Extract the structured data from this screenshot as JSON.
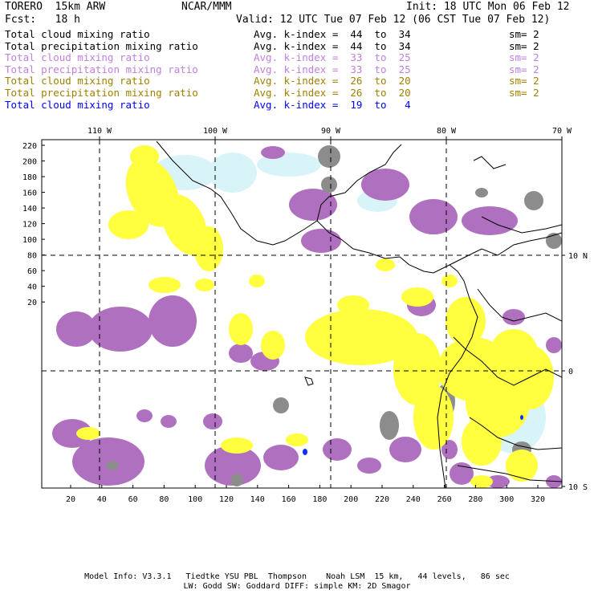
{
  "header": {
    "left_line1": "TORERO  15km ARW",
    "center_line1": "NCAR/MMM",
    "right_line1": "Init: 18 UTC Mon 06 Feb 12",
    "left_line2": "Fcst:   18 h",
    "right_line2": "Valid: 12 UTC Tue 07 Feb 12 (06 CST Tue 07 Feb 12)"
  },
  "legend_rows": [
    {
      "field": "Total cloud mixing ratio",
      "index": "Avg. k-index =  44  to  34",
      "sm": "sm= 2",
      "color": "#000000"
    },
    {
      "field": "Total precipitation mixing ratio",
      "index": "Avg. k-index =  44  to  34",
      "sm": "sm= 2",
      "color": "#000000"
    },
    {
      "field": "Total cloud mixing ratio",
      "index": "Avg. k-index =  33  to  25",
      "sm": "sm= 2",
      "color": "#c080e0"
    },
    {
      "field": "Total precipitation mixing ratio",
      "index": "Avg. k-index =  33  to  25",
      "sm": "sm= 2",
      "color": "#c080e0"
    },
    {
      "field": "Total cloud mixing ratio",
      "index": "Avg. k-index =  26  to  20",
      "sm": "sm= 2",
      "color": "#a08000"
    },
    {
      "field": "Total precipitation mixing ratio",
      "index": "Avg. k-index =  26  to  20",
      "sm": "sm= 2",
      "color": "#a08000"
    },
    {
      "field": "Total cloud mixing ratio",
      "index": "Avg. k-index =  19  to   4",
      "sm": "",
      "color": "#0000ff"
    }
  ],
  "map": {
    "lon_labels": [
      "110 W",
      "100 W",
      "90 W",
      "80 W",
      "70 W"
    ],
    "lat_labels": [
      "10 N",
      "0",
      "10 S"
    ],
    "y_ticks": [
      "220",
      "200",
      "180",
      "160",
      "140",
      "120",
      "100",
      "80",
      "60",
      "40",
      "20"
    ],
    "x_ticks": [
      "20",
      "40",
      "60",
      "80",
      "100",
      "120",
      "140",
      "160",
      "180",
      "200",
      "220",
      "240",
      "260",
      "280",
      "300",
      "320"
    ],
    "colors": {
      "gray": "#8c8c8c",
      "purple": "#b070c0",
      "yellow": "#ffff40",
      "cyan": "#d8f4f8",
      "blue": "#1030ff"
    }
  },
  "footer": {
    "line1": "Model Info: V3.3.1   Tiedtke YSU PBL  Thompson    Noah LSM  15 km,   44 levels,   86 sec",
    "line2": "LW: Godd SW: Goddard DIFF: simple KM: 2D Smagor"
  }
}
